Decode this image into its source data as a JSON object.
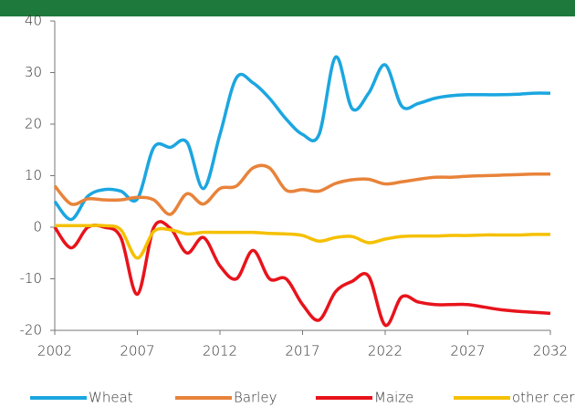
{
  "chart_data": {
    "type": "line",
    "x": [
      2002,
      2003,
      2004,
      2005,
      2006,
      2007,
      2008,
      2009,
      2010,
      2011,
      2012,
      2013,
      2014,
      2015,
      2016,
      2017,
      2018,
      2019,
      2020,
      2021,
      2022,
      2023,
      2024,
      2025,
      2026,
      2027,
      2028,
      2029,
      2030,
      2031,
      2032
    ],
    "series": [
      {
        "name": "Wheat",
        "color": "#1ba6e0",
        "values": [
          5,
          1.5,
          6,
          7.3,
          7,
          5.5,
          15.5,
          15.5,
          16.5,
          7.5,
          18,
          29,
          28,
          25,
          21,
          18,
          18,
          33,
          23,
          26,
          31.5,
          23.5,
          24,
          25,
          25.5,
          25.7,
          25.7,
          25.7,
          25.8,
          26,
          26
        ]
      },
      {
        "name": "Barley",
        "color": "#e8833a",
        "values": [
          8,
          4.5,
          5.5,
          5.3,
          5.3,
          5.8,
          5.3,
          2.5,
          6.5,
          4.5,
          7.5,
          8,
          11.5,
          11.5,
          7.2,
          7.3,
          7,
          8.5,
          9.2,
          9.3,
          8.4,
          8.8,
          9.3,
          9.7,
          9.7,
          9.9,
          10,
          10.1,
          10.2,
          10.3,
          10.3
        ]
      },
      {
        "name": "Maize",
        "color": "#e8131b",
        "values": [
          0,
          -4,
          0,
          0,
          -2,
          -13,
          0,
          -0.2,
          -5,
          -2,
          -7.5,
          -10,
          -4.5,
          -10,
          -10,
          -15,
          -18,
          -12.5,
          -10.5,
          -9.5,
          -19,
          -13.5,
          -14.5,
          -15,
          -15,
          -15,
          -15.5,
          -16,
          -16.3,
          -16.5,
          -16.7
        ]
      },
      {
        "name": "other cereals",
        "color": "#f5c000",
        "values": [
          0.3,
          0.3,
          0.3,
          0.3,
          -0.5,
          -6,
          -0.8,
          -0.5,
          -1.3,
          -1,
          -1,
          -1,
          -1,
          -1.2,
          -1.3,
          -1.6,
          -2.7,
          -2,
          -1.8,
          -3,
          -2.3,
          -1.8,
          -1.7,
          -1.7,
          -1.6,
          -1.6,
          -1.5,
          -1.5,
          -1.5,
          -1.4,
          -1.4
        ]
      }
    ],
    "xlim": [
      2002,
      2032
    ],
    "xticks": [
      2002,
      2007,
      2012,
      2017,
      2022,
      2027,
      2032
    ],
    "ylim": [
      -20,
      40
    ],
    "yticks": [
      -20,
      -10,
      0,
      10,
      20,
      30,
      40
    ],
    "grid": false,
    "legend": "bottom"
  }
}
